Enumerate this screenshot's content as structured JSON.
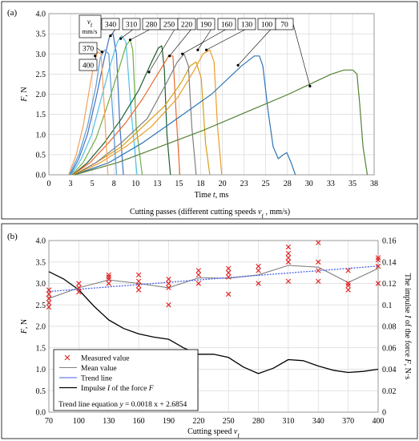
{
  "chart_data": [
    {
      "panel_label": "(a)",
      "type": "line",
      "title": "Cutting passes (different cutting speeds v_f , mm/s)",
      "title_parts": {
        "pre": "Cutting passes (different cutting speeds ",
        "var": "v",
        "sub": "f",
        "post": " , mm/s)"
      },
      "xlabel": "Time t, ms",
      "xlabel_parts": {
        "pre": "Time ",
        "var": "t",
        "post": ", ms"
      },
      "ylabel": "F, N",
      "ylabel_parts": {
        "var": "F",
        "post": ", N"
      },
      "xlim": [
        0,
        38
      ],
      "ylim": [
        0,
        4.0
      ],
      "xticks": [
        "0",
        "3",
        "5",
        "8",
        "10",
        "13",
        "15",
        "18",
        "20",
        "23",
        "25",
        "28",
        "30",
        "33",
        "35",
        "38"
      ],
      "xtick_values": [
        0,
        2.53,
        5.07,
        7.6,
        10.13,
        12.67,
        15.2,
        17.73,
        20.27,
        22.8,
        25.33,
        27.87,
        30.4,
        32.93,
        35.47,
        38
      ],
      "yticks": [
        "0.0",
        "0.5",
        "1.0",
        "1.5",
        "2.0",
        "2.5",
        "3.0",
        "3.5",
        "4.0"
      ],
      "ytick_values": [
        0,
        0.5,
        1.0,
        1.5,
        2.0,
        2.5,
        3.0,
        3.5,
        4.0
      ],
      "grid": true,
      "legend_header": {
        "var": "v",
        "sub": "f",
        "unit": "mm/s"
      },
      "series": [
        {
          "name": "340",
          "color": "#4472c4",
          "x": [
            2.5,
            3.5,
            4.5,
            5.5,
            6.5,
            7.1,
            7.5,
            7.9,
            8.3,
            8.7
          ],
          "y": [
            0,
            0.4,
            1.0,
            1.9,
            2.9,
            3.45,
            3.5,
            3.0,
            1.2,
            0
          ]
        },
        {
          "name": "310",
          "color": "#4fc0e8",
          "x": [
            2.6,
            3.8,
            5.0,
            6.0,
            7.0,
            8.0,
            8.5,
            9.0,
            9.6,
            10.3
          ],
          "y": [
            0,
            0.4,
            1.0,
            1.8,
            2.6,
            3.3,
            3.45,
            3.3,
            1.6,
            0
          ]
        },
        {
          "name": "280",
          "color": "#70ad47",
          "x": [
            2.7,
            4.0,
            5.5,
            6.8,
            8.0,
            9.0,
            9.5,
            9.8,
            10.2,
            10.9
          ],
          "y": [
            0,
            0.3,
            0.9,
            1.7,
            2.5,
            3.2,
            3.35,
            3.1,
            1.2,
            0
          ]
        },
        {
          "name": "250",
          "color": "#1f5e2e",
          "x": [
            2.8,
            4.5,
            6.5,
            8.5,
            10.5,
            12.0,
            12.8,
            13.2,
            13.5,
            13.8,
            14.2
          ],
          "y": [
            0,
            0.3,
            0.8,
            1.4,
            2.1,
            2.8,
            3.15,
            3.2,
            2.6,
            1.0,
            0
          ]
        },
        {
          "name": "220",
          "color": "#e86a2e",
          "x": [
            2.8,
            4.8,
            7.0,
            9.0,
            11.0,
            13.0,
            14.0,
            14.5,
            14.9,
            15.3
          ],
          "y": [
            0,
            0.3,
            0.8,
            1.3,
            1.9,
            2.6,
            2.95,
            2.95,
            1.4,
            0
          ]
        },
        {
          "name": "190",
          "color": "#d4a017",
          "x": [
            2.9,
            5.5,
            8.5,
            11.0,
            13.5,
            15.5,
            16.5,
            17.2,
            17.8,
            18.3,
            18.8
          ],
          "y": [
            0,
            0.3,
            0.7,
            1.2,
            1.7,
            2.3,
            2.7,
            2.8,
            2.4,
            0.8,
            0
          ]
        },
        {
          "name": "160",
          "color": "#7f7f7f",
          "x": [
            3.0,
            5.5,
            8.5,
            11.5,
            13.8,
            15.0,
            15.8,
            16.3,
            16.7,
            17.2
          ],
          "y": [
            0,
            0.3,
            0.8,
            1.4,
            2.3,
            2.8,
            3.0,
            2.7,
            1.2,
            0
          ]
        },
        {
          "name": "130",
          "color": "#ed9c28",
          "x": [
            3.0,
            6.0,
            9.0,
            12.0,
            15.0,
            17.0,
            18.0,
            18.8,
            19.3,
            19.7,
            20.2
          ],
          "y": [
            0,
            0.3,
            0.7,
            1.2,
            1.9,
            2.6,
            3.0,
            3.1,
            2.8,
            1.2,
            0
          ]
        },
        {
          "name": "100",
          "color": "#2e75b6",
          "x": [
            3.0,
            7.0,
            11.0,
            15.0,
            19.0,
            22.5,
            24.0,
            24.6,
            25.0,
            25.6,
            26.2,
            26.8,
            27.4,
            27.8,
            28.3,
            28.8
          ],
          "y": [
            0,
            0.3,
            0.8,
            1.4,
            2.0,
            2.7,
            2.95,
            2.95,
            2.7,
            1.6,
            0.7,
            0.4,
            0.5,
            0.55,
            0.3,
            0
          ]
        },
        {
          "name": "70",
          "color": "#548235",
          "x": [
            3.0,
            8.0,
            13.0,
            18.0,
            23.0,
            28.0,
            31.0,
            33.0,
            34.5,
            35.5,
            36.0,
            36.3,
            36.7,
            37.2
          ],
          "y": [
            0,
            0.3,
            0.7,
            1.1,
            1.55,
            2.0,
            2.3,
            2.5,
            2.6,
            2.6,
            2.5,
            1.8,
            0.7,
            0
          ]
        },
        {
          "name": "370",
          "color": "#5a9bd5",
          "x": [
            2.4,
            3.5,
            4.5,
            5.5,
            6.0,
            6.5,
            7.0,
            7.5,
            7.9
          ],
          "y": [
            0,
            0.5,
            1.2,
            2.2,
            2.9,
            3.1,
            3.0,
            1.4,
            0
          ]
        },
        {
          "name": "400",
          "color": "#f4a05a",
          "x": [
            2.3,
            3.2,
            4.0,
            4.8,
            5.3,
            5.7,
            6.1,
            6.5,
            6.9
          ],
          "y": [
            0,
            0.5,
            1.2,
            2.2,
            2.8,
            3.05,
            3.0,
            1.6,
            0
          ]
        }
      ]
    },
    {
      "panel_label": "(b)",
      "type": "scatter",
      "xlabel": "Cutting speed v_f",
      "xlabel_parts": {
        "pre": "Cutting speed ",
        "var": "v",
        "sub": "f"
      },
      "ylabel": "F, N",
      "ylabel_parts": {
        "var": "F",
        "post": ", N"
      },
      "y2label": "The impulse I of the force F, N·s",
      "y2label_parts": {
        "pre": "The impulse ",
        "var": "I",
        "mid": " of the force ",
        "var2": "F",
        "post": ", N·s"
      },
      "xlim": [
        70,
        400
      ],
      "ylim": [
        0,
        4.0
      ],
      "y2lim": [
        0,
        0.16
      ],
      "xticks": [
        "70",
        "100",
        "130",
        "160",
        "190",
        "220",
        "250",
        "280",
        "310",
        "340",
        "370",
        "400"
      ],
      "xtick_values": [
        70,
        100,
        130,
        160,
        190,
        220,
        250,
        280,
        310,
        340,
        370,
        400
      ],
      "yticks": [
        "0.0",
        "0.5",
        "1.0",
        "1.5",
        "2.0",
        "2.5",
        "3.0",
        "3.5",
        "4.0"
      ],
      "ytick_values": [
        0,
        0.5,
        1.0,
        1.5,
        2.0,
        2.5,
        3.0,
        3.5,
        4.0
      ],
      "y2ticks": [
        "0",
        "0.02",
        "0.04",
        "0.06",
        "0.08",
        "0.1",
        "0.12",
        "0.14",
        "0.16"
      ],
      "y2tick_values": [
        0,
        0.02,
        0.04,
        0.06,
        0.08,
        0.1,
        0.12,
        0.14,
        0.16
      ],
      "grid": true,
      "measured": [
        [
          70,
          2.45
        ],
        [
          70,
          2.55
        ],
        [
          70,
          2.65
        ],
        [
          70,
          2.75
        ],
        [
          70,
          2.85
        ],
        [
          100,
          2.8
        ],
        [
          100,
          2.9
        ],
        [
          100,
          3.0
        ],
        [
          130,
          3.0
        ],
        [
          130,
          3.1
        ],
        [
          130,
          3.15
        ],
        [
          130,
          3.2
        ],
        [
          160,
          2.85
        ],
        [
          160,
          2.95
        ],
        [
          160,
          3.05
        ],
        [
          160,
          3.2
        ],
        [
          190,
          2.5
        ],
        [
          190,
          2.9
        ],
        [
          190,
          3.0
        ],
        [
          190,
          3.1
        ],
        [
          220,
          3.0
        ],
        [
          220,
          3.2
        ],
        [
          220,
          3.3
        ],
        [
          250,
          2.75
        ],
        [
          250,
          3.15
        ],
        [
          250,
          3.25
        ],
        [
          250,
          3.35
        ],
        [
          280,
          3.0
        ],
        [
          280,
          3.3
        ],
        [
          280,
          3.4
        ],
        [
          310,
          3.05
        ],
        [
          310,
          3.5
        ],
        [
          310,
          3.6
        ],
        [
          310,
          3.7
        ],
        [
          310,
          3.85
        ],
        [
          340,
          3.05
        ],
        [
          340,
          3.3
        ],
        [
          340,
          3.5
        ],
        [
          340,
          3.95
        ],
        [
          370,
          2.85
        ],
        [
          370,
          2.95
        ],
        [
          370,
          3.0
        ],
        [
          370,
          3.3
        ],
        [
          400,
          3.0
        ],
        [
          400,
          3.4
        ],
        [
          400,
          3.55
        ],
        [
          400,
          3.6
        ]
      ],
      "mean": {
        "x": [
          70,
          100,
          130,
          160,
          190,
          220,
          250,
          280,
          310,
          340,
          370,
          400
        ],
        "y": [
          2.65,
          2.9,
          3.08,
          3.0,
          2.9,
          3.13,
          3.12,
          3.2,
          3.42,
          3.38,
          3.02,
          3.35
        ]
      },
      "trend": {
        "x": [
          70,
          400
        ],
        "y": [
          2.8114,
          3.4054
        ]
      },
      "impulse": {
        "x": [
          70,
          85,
          100,
          115,
          130,
          145,
          160,
          175,
          190,
          205,
          220,
          235,
          250,
          265,
          280,
          295,
          310,
          325,
          340,
          355,
          370,
          385,
          400
        ],
        "y": [
          0.131,
          0.124,
          0.114,
          0.099,
          0.086,
          0.078,
          0.073,
          0.07,
          0.068,
          0.06,
          0.054,
          0.054,
          0.051,
          0.042,
          0.036,
          0.041,
          0.049,
          0.048,
          0.043,
          0.039,
          0.037,
          0.038,
          0.04
        ]
      },
      "legend": {
        "position": "bottom-left",
        "items": [
          {
            "label": "Measured value",
            "kind": "marker",
            "color": "#e02020"
          },
          {
            "label": "Mean value",
            "kind": "line",
            "color": "#7f7f7f"
          },
          {
            "label": "Trend line",
            "kind": "line",
            "color": "#4a60e8"
          },
          {
            "label": "Impulse I of the force F",
            "kind": "line",
            "color": "#000000",
            "parts": {
              "pre": "Impulse ",
              "var": "I",
              "mid": " of the force ",
              "var2": "F"
            }
          }
        ],
        "equation": "Trend line equation y = 0.0018 x + 2.6854",
        "equation_parts": {
          "pre": "Trend line equation ",
          "var": "y",
          "post": " = 0.0018 x + 2.6854"
        }
      }
    }
  ]
}
